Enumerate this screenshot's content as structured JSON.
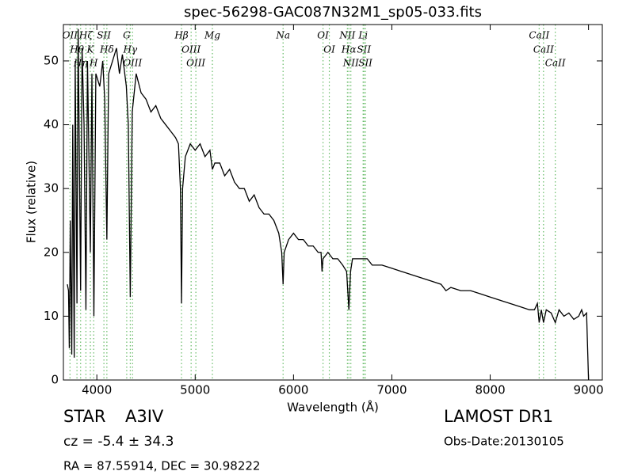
{
  "chart_data": {
    "type": "line",
    "title": "spec-56298-GAC087N32M1_sp05-033.fits",
    "xlabel": "Wavelength (Å)",
    "ylabel": "Flux (relative)",
    "color": "#000000",
    "line_color": "#66bb66",
    "xlim": [
      3660,
      9140
    ],
    "ylim": [
      0,
      55.7
    ],
    "xticks": [
      4000,
      5000,
      6000,
      7000,
      8000,
      9000
    ],
    "yticks": [
      0,
      10,
      20,
      30,
      40,
      50
    ],
    "x": [
      3700,
      3712,
      3720,
      3730,
      3745,
      3755,
      3770,
      3780,
      3798,
      3810,
      3835,
      3850,
      3870,
      3889,
      3905,
      3934,
      3950,
      3970,
      3990,
      4030,
      4060,
      4080,
      4102,
      4120,
      4160,
      4200,
      4230,
      4260,
      4300,
      4320,
      4340,
      4360,
      4400,
      4450,
      4500,
      4550,
      4600,
      4650,
      4700,
      4750,
      4800,
      4830,
      4850,
      4861,
      4872,
      4900,
      4950,
      5000,
      5050,
      5100,
      5150,
      5175,
      5200,
      5250,
      5300,
      5350,
      5400,
      5450,
      5500,
      5550,
      5600,
      5650,
      5700,
      5750,
      5800,
      5850,
      5880,
      5894,
      5905,
      5950,
      6000,
      6050,
      6100,
      6150,
      6200,
      6250,
      6280,
      6290,
      6300,
      6350,
      6400,
      6450,
      6500,
      6540,
      6563,
      6580,
      6600,
      6650,
      6700,
      6750,
      6800,
      6850,
      6900,
      7000,
      7100,
      7200,
      7300,
      7400,
      7500,
      7550,
      7600,
      7700,
      7800,
      7900,
      8000,
      8100,
      8200,
      8300,
      8400,
      8450,
      8480,
      8498,
      8520,
      8542,
      8570,
      8620,
      8662,
      8700,
      8750,
      8800,
      8850,
      8900,
      8930,
      8950,
      8980,
      9000
    ],
    "values": [
      15,
      14,
      5,
      25,
      4,
      40,
      3.5,
      50,
      12,
      55,
      14,
      52,
      40,
      11,
      50,
      20,
      48,
      10,
      48,
      46,
      50,
      44,
      22,
      48,
      50,
      52,
      48,
      51,
      46,
      40,
      13,
      42,
      48,
      45,
      44,
      42,
      43,
      41,
      40,
      39,
      38,
      37,
      30,
      12,
      30,
      35,
      37,
      36,
      37,
      35,
      36,
      33,
      34,
      34,
      32,
      33,
      31,
      30,
      30,
      28,
      29,
      27,
      26,
      26,
      25,
      23,
      20,
      15,
      20,
      22,
      23,
      22,
      22,
      21,
      21,
      20,
      20,
      17,
      19,
      20,
      19,
      19,
      18,
      17,
      11,
      17,
      19,
      19,
      19,
      19,
      18,
      18,
      18,
      17.5,
      17,
      16.5,
      16,
      15.5,
      15,
      14,
      14.5,
      14,
      14,
      13.5,
      13,
      12.5,
      12,
      11.5,
      11,
      11,
      12,
      9,
      11,
      9,
      11,
      10.5,
      9,
      11,
      10,
      10.5,
      9.5,
      10,
      11,
      10,
      10.5,
      0
    ],
    "lines": [
      {
        "label": "OII",
        "x": 3727
      },
      {
        "label": "Hθ",
        "x": 3798
      },
      {
        "label": "Hη",
        "x": 3835
      },
      {
        "label": "Hζ",
        "x": 3889
      },
      {
        "label": "K",
        "x": 3934
      },
      {
        "label": "H",
        "x": 3968
      },
      {
        "label": "SII",
        "x": 4072
      },
      {
        "label": "Hδ",
        "x": 4102
      },
      {
        "label": "G",
        "x": 4304
      },
      {
        "label": "Hγ",
        "x": 4340
      },
      {
        "label": "OIII",
        "x": 4363
      },
      {
        "label": "Hβ",
        "x": 4861
      },
      {
        "label": "OIII",
        "x": 4959
      },
      {
        "label": "OIII",
        "x": 5007
      },
      {
        "label": "Mg",
        "x": 5175
      },
      {
        "label": "Na",
        "x": 5894
      },
      {
        "label": "OI",
        "x": 6300
      },
      {
        "label": "OI",
        "x": 6364
      },
      {
        "label": "NII",
        "x": 6548
      },
      {
        "label": "Hα",
        "x": 6563
      },
      {
        "label": "NII",
        "x": 6583
      },
      {
        "label": "Li",
        "x": 6708
      },
      {
        "label": "SII",
        "x": 6716
      },
      {
        "label": "SII",
        "x": 6731
      },
      {
        "label": "CaII",
        "x": 8498
      },
      {
        "label": "CaII",
        "x": 8542
      },
      {
        "label": "CaII",
        "x": 8662
      }
    ],
    "annotations": {
      "object_class": "STAR",
      "subclass": "A3IV",
      "velocity": "cz = -5.4 ± 34.3",
      "coords": "RA = 87.55914, DEC = 30.98222",
      "survey": "LAMOST DR1",
      "obs_date": "Obs-Date:20130105"
    }
  }
}
